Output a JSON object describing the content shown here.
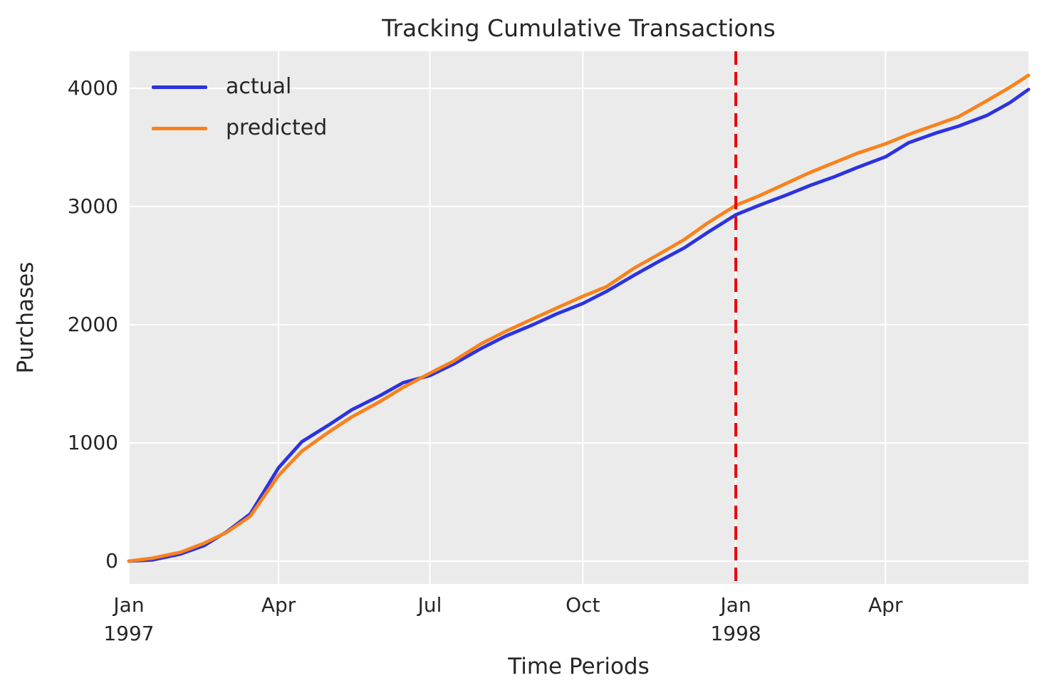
{
  "title": "Tracking Cumulative Transactions",
  "style": {
    "plot_background": "#ebebeb",
    "grid_color": "#ffffff",
    "text_color": "#262626",
    "actual_color": "#2c33e0",
    "predicted_color": "#f8821c",
    "vline_color": "#e8000b"
  },
  "chart_data": {
    "type": "line",
    "title": "Tracking Cumulative Transactions",
    "xlabel": "Time Periods",
    "ylabel": "Purchases",
    "x_unit": "days since 1997-01-01",
    "xlim": [
      0,
      541
    ],
    "ylim": [
      -200,
      4330
    ],
    "grid": true,
    "legend_position": "upper left",
    "x": [
      0,
      14,
      31,
      45,
      59,
      73,
      90,
      104,
      120,
      134,
      151,
      165,
      181,
      195,
      212,
      226,
      243,
      257,
      273,
      287,
      304,
      318,
      334,
      348,
      365,
      379,
      396,
      410,
      424,
      438,
      455,
      469,
      485,
      499,
      516,
      530,
      541
    ],
    "series": [
      {
        "name": "actual",
        "color": "#2c33e0",
        "values": [
          0,
          10,
          60,
          130,
          250,
          400,
          790,
          1010,
          1150,
          1280,
          1400,
          1510,
          1570,
          1665,
          1800,
          1900,
          2000,
          2090,
          2180,
          2280,
          2420,
          2530,
          2650,
          2780,
          2930,
          3010,
          3100,
          3180,
          3250,
          3330,
          3420,
          3540,
          3620,
          3680,
          3770,
          3880,
          3990
        ]
      },
      {
        "name": "predicted",
        "color": "#f8821c",
        "values": [
          0,
          25,
          75,
          150,
          245,
          380,
          725,
          930,
          1090,
          1220,
          1350,
          1470,
          1590,
          1690,
          1840,
          1940,
          2050,
          2140,
          2240,
          2320,
          2480,
          2590,
          2720,
          2860,
          3010,
          3090,
          3200,
          3290,
          3370,
          3450,
          3530,
          3610,
          3690,
          3760,
          3895,
          4010,
          4110
        ]
      }
    ],
    "xticks": [
      {
        "day": 0,
        "label": "Jan",
        "sublabel": "1997"
      },
      {
        "day": 90,
        "label": "Apr",
        "sublabel": ""
      },
      {
        "day": 181,
        "label": "Jul",
        "sublabel": ""
      },
      {
        "day": 273,
        "label": "Oct",
        "sublabel": ""
      },
      {
        "day": 365,
        "label": "Jan",
        "sublabel": "1998"
      },
      {
        "day": 455,
        "label": "Apr",
        "sublabel": ""
      }
    ],
    "yticks": [
      0,
      1000,
      2000,
      3000,
      4000
    ],
    "vline": {
      "day": 365,
      "color": "#e8000b",
      "style": "dashed"
    }
  }
}
